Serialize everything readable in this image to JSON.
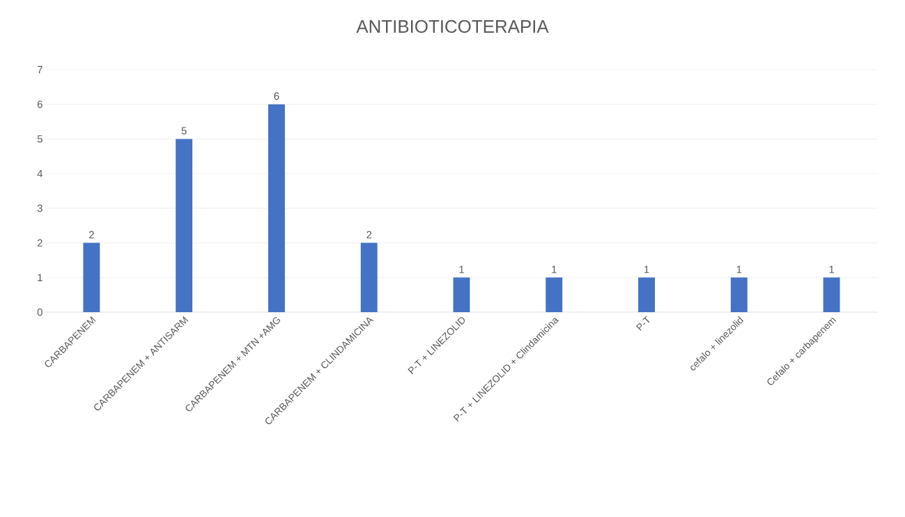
{
  "chart_data": {
    "type": "bar",
    "title": "ANTIBIOTICOTERAPIA",
    "categories": [
      "CARBAPENEM",
      "CARBAPENEM + ANTISARM",
      "CARBAPENEM + MTN +AMG",
      "CARBAPENEM + CLINDAMICINA",
      "P-T + LINEZOLID",
      "P-T + LINEZOLID + Clindamicina",
      "P-T",
      "cefalo + linezolid",
      "Cefalo + carbapenem"
    ],
    "values": [
      2,
      5,
      6,
      2,
      1,
      1,
      1,
      1,
      1
    ],
    "color": "#4472c4",
    "ylim": [
      0,
      7
    ],
    "yticks": [
      0,
      1,
      2,
      3,
      4,
      5,
      6,
      7
    ],
    "grid": "y",
    "data_labels": true
  }
}
